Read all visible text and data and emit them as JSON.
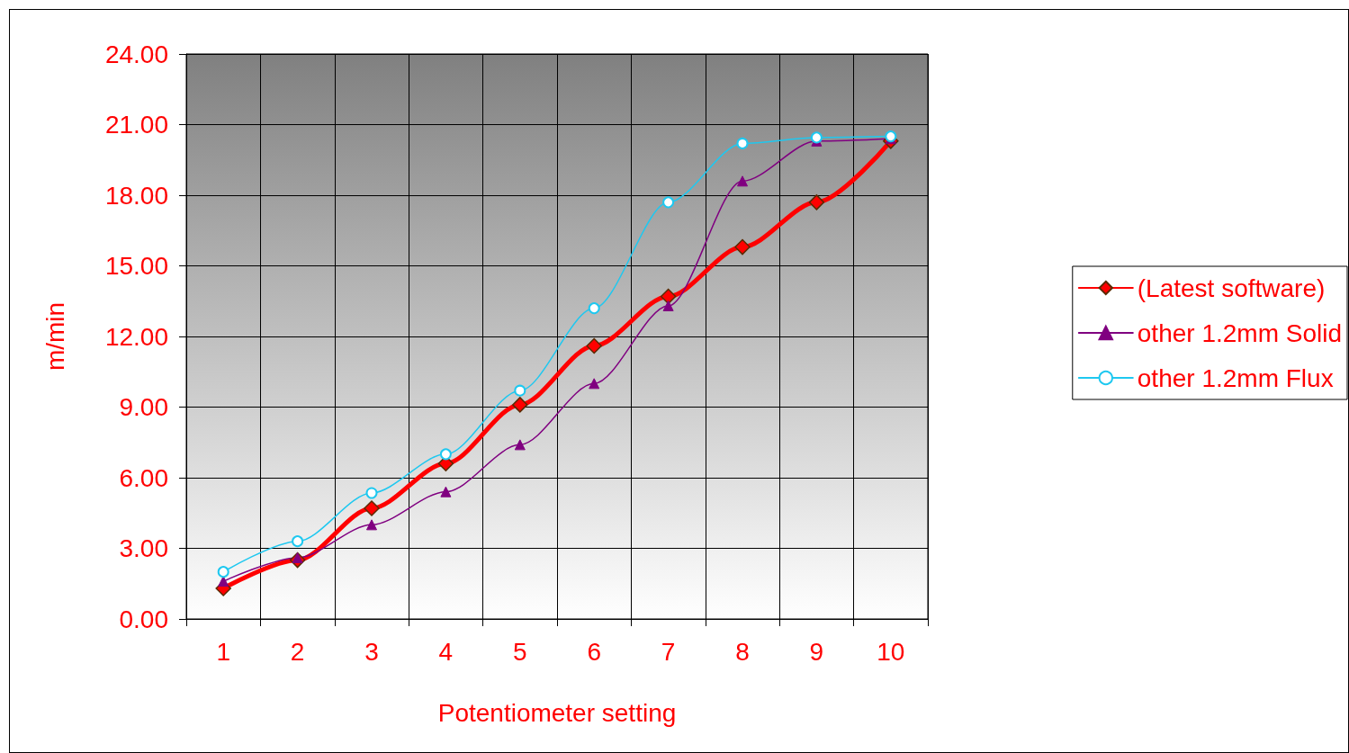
{
  "chart_data": {
    "type": "line",
    "xlabel": "Potentiometer setting",
    "ylabel": "m/min",
    "categories": [
      "1",
      "2",
      "3",
      "4",
      "5",
      "6",
      "7",
      "8",
      "9",
      "10"
    ],
    "series": [
      {
        "name": "(Latest software)",
        "color": "#ff0000",
        "marker": "diamond",
        "values": [
          1.3,
          2.5,
          4.7,
          6.6,
          9.1,
          11.6,
          13.7,
          15.8,
          17.7,
          20.3
        ]
      },
      {
        "name": "other 1.2mm Solid",
        "color": "#800080",
        "marker": "triangle",
        "values": [
          1.6,
          2.6,
          4.0,
          5.4,
          7.4,
          10.0,
          13.3,
          18.6,
          20.3,
          20.4
        ]
      },
      {
        "name": "other 1.2mm Flux",
        "color": "#1ec8f0",
        "marker": "circle",
        "values": [
          2.0,
          3.3,
          5.35,
          7.0,
          9.7,
          13.2,
          17.7,
          20.2,
          20.45,
          20.5
        ]
      }
    ],
    "ylim": [
      0,
      24
    ],
    "yticks": [
      {
        "value": 0,
        "label": "0.00"
      },
      {
        "value": 3,
        "label": "3.00"
      },
      {
        "value": 6,
        "label": "6.00"
      },
      {
        "value": 9,
        "label": "9.00"
      },
      {
        "value": 12,
        "label": "12.00"
      },
      {
        "value": 15,
        "label": "15.00"
      },
      {
        "value": 18,
        "label": "18.00"
      },
      {
        "value": 21,
        "label": "21.00"
      },
      {
        "value": 24,
        "label": "24.00"
      }
    ],
    "grid": true,
    "legend": "right"
  }
}
